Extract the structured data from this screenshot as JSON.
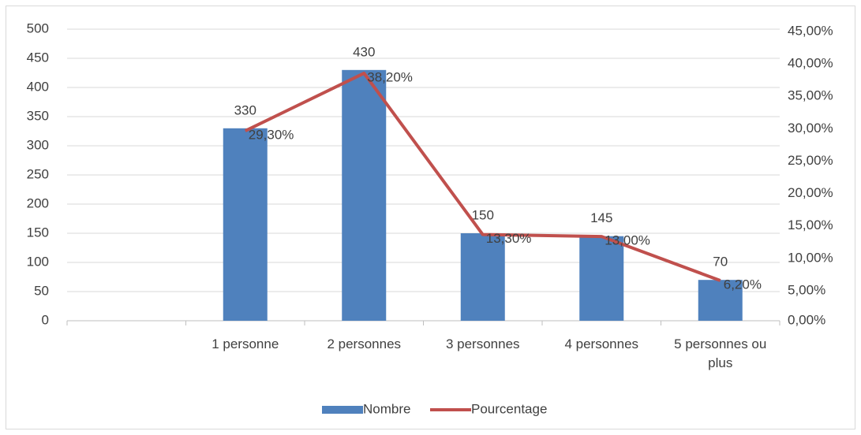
{
  "chart_data": {
    "type": "bar-line",
    "categories": [
      null,
      "1 personne",
      "2 personnes",
      "3 personnes",
      "4 personnes",
      "5 personnes ou plus"
    ],
    "series": [
      {
        "name": "Nombre",
        "color": "#4f81bd",
        "type": "bar",
        "values": [
          null,
          330,
          430,
          150,
          145,
          70
        ]
      },
      {
        "name": "Pourcentage",
        "color": "#c0504d",
        "type": "line",
        "axis": "y2",
        "values": [
          null,
          29.3,
          38.2,
          13.3,
          13.0,
          6.2
        ],
        "value_labels": [
          null,
          "29,30%",
          "38,20%",
          "13,30%",
          "13,00%",
          "6,20%"
        ]
      }
    ],
    "ylim": [
      0,
      500
    ],
    "yticks": [
      0,
      50,
      100,
      150,
      200,
      250,
      300,
      350,
      400,
      450,
      500
    ],
    "y2lim": [
      0,
      45
    ],
    "y2ticks": [
      {
        "value": 0,
        "label": "0,00%"
      },
      {
        "value": 5,
        "label": "5,00%"
      },
      {
        "value": 10,
        "label": "10,00%"
      },
      {
        "value": 15,
        "label": "15,00%"
      },
      {
        "value": 20,
        "label": "20,00%"
      },
      {
        "value": 25,
        "label": "25,00%"
      },
      {
        "value": 30,
        "label": "30,00%"
      },
      {
        "value": 35,
        "label": "35,00%"
      },
      {
        "value": 40,
        "label": "40,00%"
      },
      {
        "value": 45,
        "label": "45,00%"
      }
    ],
    "grid": true,
    "legend": "bottom"
  }
}
